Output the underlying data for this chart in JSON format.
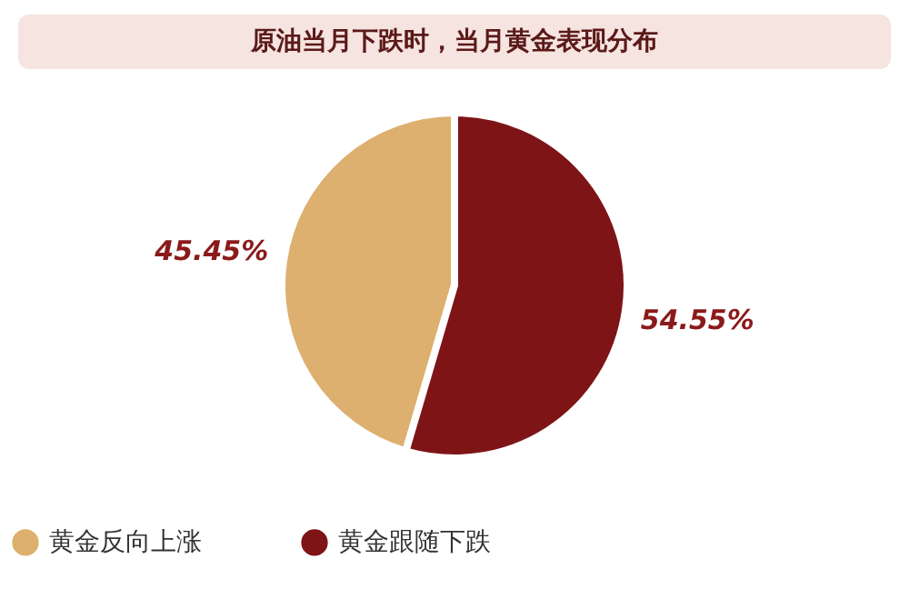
{
  "chart_data": {
    "type": "pie",
    "title": "原油当月下跌时，当月黄金表现分布",
    "categories": [
      "黄金反向上涨",
      "黄金跟随下跌"
    ],
    "values": [
      45.45,
      54.55
    ],
    "colors": [
      "#ddb06f",
      "#7e1416"
    ],
    "value_labels": [
      "45.45%",
      "54.55%"
    ],
    "legend": "bottom"
  }
}
